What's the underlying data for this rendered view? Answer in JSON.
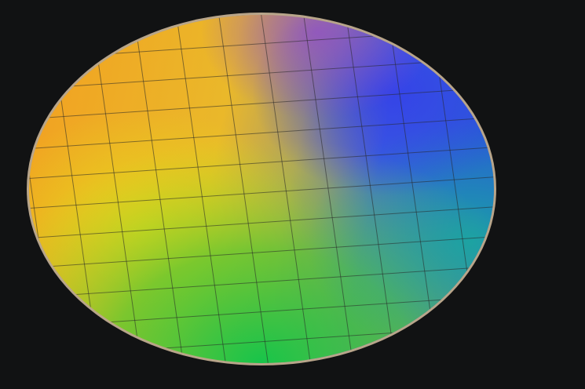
{
  "scene": {
    "subject": "silicon-wafer",
    "colors": {
      "background": "#111213",
      "orange": "#f2a021",
      "yellow": "#e8d21a",
      "green": "#22c24a",
      "teal": "#1aa6a0",
      "blue": "#3350e6",
      "purple": "#8a50d0",
      "rim": "#b8a58a"
    }
  }
}
